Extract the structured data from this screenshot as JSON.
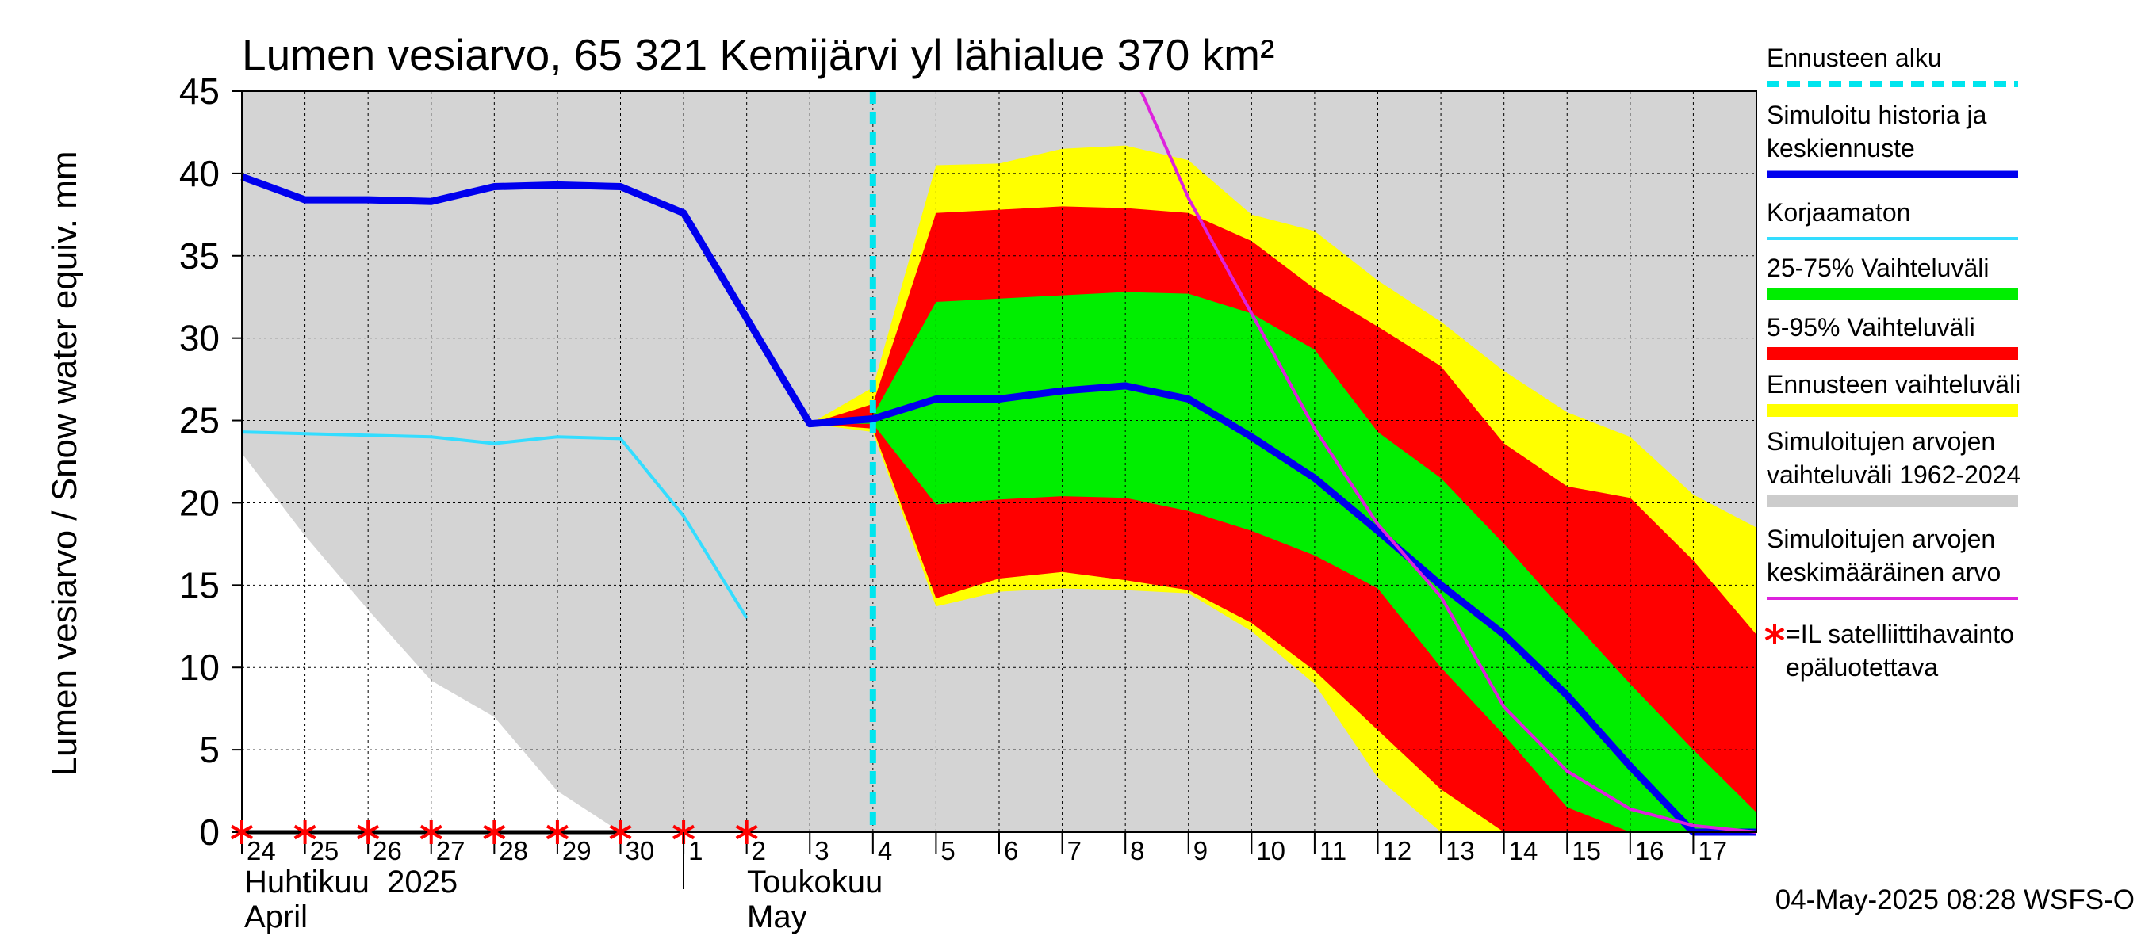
{
  "chart_data": {
    "type": "area",
    "title": "Lumen vesiarvo, 65 321 Kemijärvi yl lähialue 370 km²",
    "ylabel": "Lumen vesiarvo / Snow water equiv.    mm",
    "ylim": [
      0,
      45
    ],
    "yticks": [
      0,
      5,
      10,
      15,
      20,
      25,
      30,
      35,
      40,
      45
    ],
    "xlim": [
      0,
      24
    ],
    "xtick_labels": [
      {
        "x": 0,
        "label": "24"
      },
      {
        "x": 1,
        "label": "25"
      },
      {
        "x": 2,
        "label": "26"
      },
      {
        "x": 3,
        "label": "27"
      },
      {
        "x": 4,
        "label": "28"
      },
      {
        "x": 5,
        "label": "29"
      },
      {
        "x": 6,
        "label": "30"
      },
      {
        "x": 7,
        "label": "1"
      },
      {
        "x": 8,
        "label": "2"
      },
      {
        "x": 9,
        "label": "3"
      },
      {
        "x": 10,
        "label": "4"
      },
      {
        "x": 11,
        "label": "5"
      },
      {
        "x": 12,
        "label": "6"
      },
      {
        "x": 13,
        "label": "7"
      },
      {
        "x": 14,
        "label": "8"
      },
      {
        "x": 15,
        "label": "9"
      },
      {
        "x": 16,
        "label": "10"
      },
      {
        "x": 17,
        "label": "11"
      },
      {
        "x": 18,
        "label": "12"
      },
      {
        "x": 19,
        "label": "13"
      },
      {
        "x": 20,
        "label": "14"
      },
      {
        "x": 21,
        "label": "15"
      },
      {
        "x": 22,
        "label": "16"
      },
      {
        "x": 23,
        "label": "17"
      }
    ],
    "month_labels": {
      "april_fi": "Huhtikuu  2025",
      "april_en": "April",
      "may_fi": "Toukokuu",
      "may_en": "May"
    },
    "month_boundary_x": 7,
    "forecast_start_x": 10,
    "grid": true,
    "legend_position": "right",
    "timestamp": "04-May-2025 08:28 WSFS-O",
    "legend": [
      {
        "label": "Ennusteen alku",
        "color": "#00e5ee",
        "style": "dashed"
      },
      {
        "label": "Simuloitu historia ja\nkeskiennuste",
        "color": "#0000ee",
        "style": "thick"
      },
      {
        "label": "Korjaamaton",
        "color": "#33ddff",
        "style": "line"
      },
      {
        "label": "25-75% Vaihteluväli",
        "color": "#00ee00",
        "style": "band"
      },
      {
        "label": "5-95% Vaihteluväli",
        "color": "#ff0000",
        "style": "band"
      },
      {
        "label": "Ennusteen vaihteluväli",
        "color": "#ffff00",
        "style": "band"
      },
      {
        "label": "Simuloitujen arvojen\nvaihteluväli 1962-2024",
        "color": "#cccccc",
        "style": "band"
      },
      {
        "label": "Simuloitujen arvojen\nkeskimääräinen arvo",
        "color": "#dd22dd",
        "style": "line"
      },
      {
        "label": "=IL satelliittihavainto\nepäluotettava",
        "color": "#ff0000",
        "style": "star"
      }
    ],
    "bands": {
      "hist_range": {
        "x": [
          0,
          1,
          2,
          3,
          4,
          5,
          6,
          7,
          8,
          9,
          10,
          11,
          12,
          13,
          14,
          15,
          16,
          17,
          18,
          19,
          20,
          21,
          22,
          23,
          24
        ],
        "upper": [
          45,
          45,
          45,
          45,
          45,
          45,
          45,
          45,
          45,
          45,
          45,
          45,
          45,
          45,
          45,
          45,
          45,
          45,
          45,
          45,
          45,
          45,
          45,
          45,
          45
        ],
        "lower": [
          23,
          18,
          13.5,
          9.2,
          7,
          2.5,
          0,
          0,
          0,
          0,
          0,
          0,
          0,
          0,
          0,
          0,
          0,
          0,
          0,
          0,
          0,
          0,
          0,
          0,
          0
        ]
      },
      "forecast_range": {
        "x": [
          9,
          10,
          11,
          12,
          13,
          14,
          15,
          16,
          17,
          18,
          19,
          20,
          21,
          22,
          23,
          24
        ],
        "upper": [
          24.8,
          27,
          40.5,
          40.6,
          41.5,
          41.7,
          40.8,
          37.5,
          36.5,
          33.5,
          31,
          28,
          25.5,
          24,
          20.5,
          18.5
        ],
        "lower": [
          24.8,
          24.3,
          13.7,
          14.6,
          14.8,
          14.7,
          14.5,
          12.2,
          9.0,
          3.3,
          0,
          0,
          0,
          0,
          0,
          0
        ]
      },
      "p5_95": {
        "x": [
          9,
          10,
          11,
          12,
          13,
          14,
          15,
          16,
          17,
          18,
          19,
          20,
          21,
          22,
          23,
          24
        ],
        "upper": [
          24.8,
          26,
          37.6,
          37.8,
          38,
          37.9,
          37.6,
          35.9,
          33,
          30.7,
          28.3,
          23.6,
          21,
          20.3,
          16.5,
          12
        ],
        "lower": [
          24.8,
          24.5,
          14.2,
          15.4,
          15.8,
          15.3,
          14.7,
          12.7,
          9.8,
          6.2,
          2.6,
          0,
          0,
          0,
          0,
          0
        ]
      },
      "p25_75": {
        "x": [
          9,
          10,
          11,
          12,
          13,
          14,
          15,
          16,
          17,
          18,
          19,
          20,
          21,
          22,
          23,
          24
        ],
        "upper": [
          24.8,
          25.3,
          32.2,
          32.4,
          32.6,
          32.8,
          32.7,
          31.5,
          29.3,
          24.3,
          21.5,
          17.5,
          13.2,
          9,
          5,
          1.2
        ],
        "lower": [
          24.8,
          24.8,
          19.9,
          20.2,
          20.4,
          20.3,
          19.5,
          18.3,
          16.8,
          14.8,
          10,
          5.9,
          1.5,
          0,
          0,
          0
        ]
      }
    },
    "series": [
      {
        "name": "Simuloitu historia ja keskiennuste",
        "color": "#0000ee",
        "x": [
          0,
          1,
          2,
          3,
          4,
          5,
          6,
          7,
          8,
          9,
          10,
          11,
          12,
          13,
          14,
          15,
          16,
          17,
          18,
          19,
          20,
          21,
          22,
          23,
          24
        ],
        "y": [
          39.8,
          38.4,
          38.4,
          38.3,
          39.2,
          39.3,
          39.2,
          37.6,
          31.2,
          24.8,
          25.1,
          26.3,
          26.3,
          26.8,
          27.1,
          26.3,
          24,
          21.5,
          18.3,
          15,
          12,
          8.3,
          4,
          0,
          0
        ]
      },
      {
        "name": "Korjaamaton",
        "color": "#33ddff",
        "x": [
          0,
          1,
          2,
          3,
          4,
          5,
          6,
          7,
          8
        ],
        "y": [
          24.3,
          24.2,
          24.1,
          24,
          23.6,
          24,
          23.9,
          19.2,
          13
        ]
      },
      {
        "name": "Simuloitujen arvojen keskimääräinen arvo",
        "color": "#dd22dd",
        "x": [
          14.25,
          15,
          16,
          17,
          18,
          19,
          20,
          21,
          22,
          23,
          24
        ],
        "y": [
          45,
          38.5,
          31.5,
          24.5,
          18.7,
          14.3,
          7.6,
          3.7,
          1.4,
          0.4,
          0
        ]
      }
    ],
    "satellite_obs_x": [
      0,
      1,
      2,
      3,
      4,
      5,
      6,
      7,
      8
    ]
  }
}
